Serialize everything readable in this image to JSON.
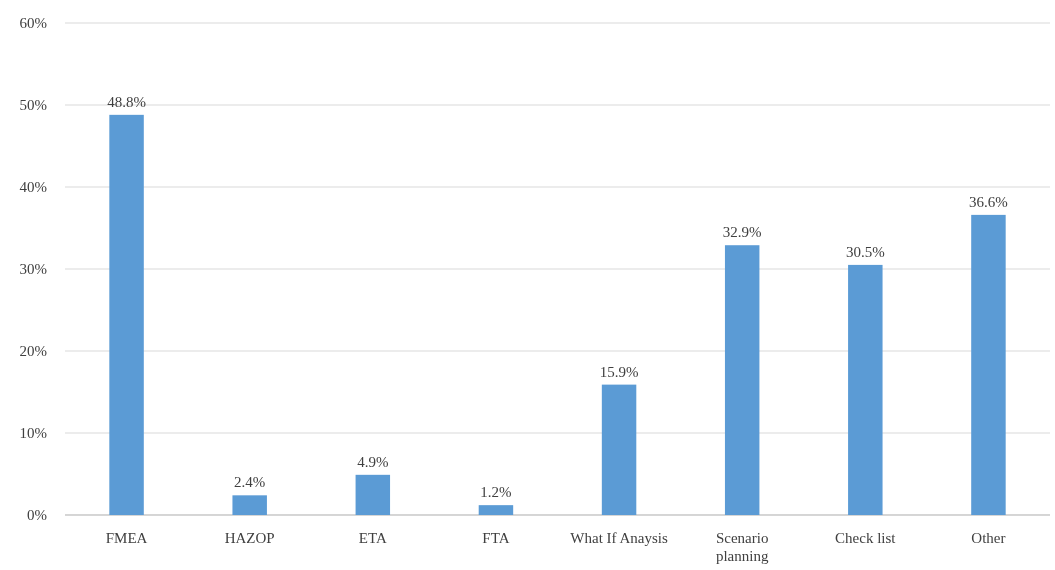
{
  "chart_data": {
    "type": "bar",
    "categories": [
      "FMEA",
      "HAZOP",
      "ETA",
      "FTA",
      "What If Anaysis",
      "Scenario planning",
      "Check list",
      "Other"
    ],
    "values": [
      48.8,
      2.4,
      4.9,
      1.2,
      15.9,
      32.9,
      30.5,
      36.6
    ],
    "value_labels": [
      "48.8%",
      "2.4%",
      "4.9%",
      "1.2%",
      "15.9%",
      "32.9%",
      "30.5%",
      "36.6%"
    ],
    "color": "#5b9bd5",
    "ylim": [
      0,
      60
    ],
    "yticks": [
      {
        "value": 0,
        "label": "0%"
      },
      {
        "value": 10,
        "label": "10%"
      },
      {
        "value": 20,
        "label": "20%"
      },
      {
        "value": 30,
        "label": "30%"
      },
      {
        "value": 40,
        "label": "40%"
      },
      {
        "value": 50,
        "label": "50%"
      },
      {
        "value": 60,
        "label": "60%"
      }
    ],
    "grid": "y"
  }
}
